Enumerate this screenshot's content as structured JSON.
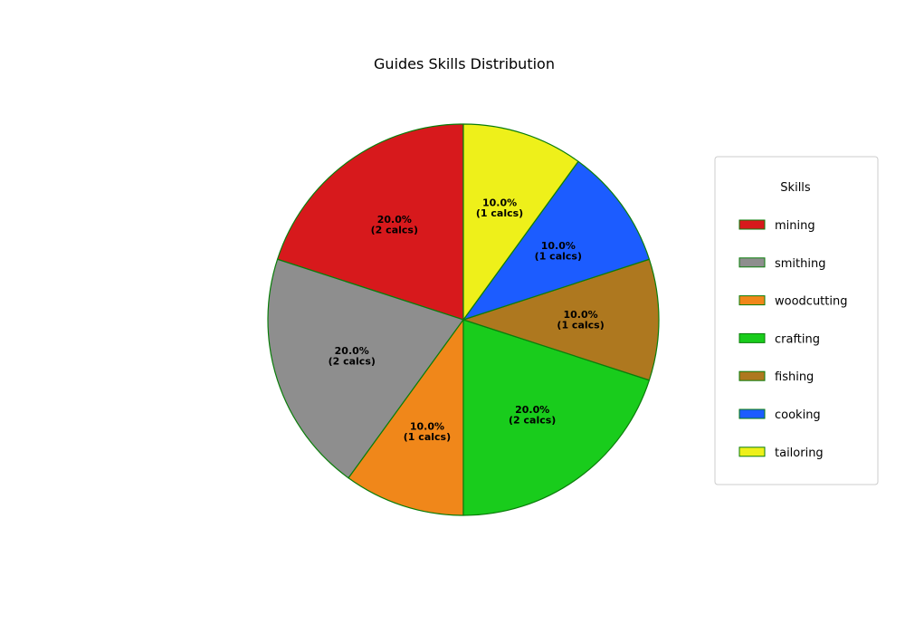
{
  "chart_data": {
    "type": "pie",
    "title": "Guides Skills Distribution",
    "legend_title": "Skills",
    "legend_position": "right",
    "slice_edge_color": "#0a7d0a",
    "start_angle_deg": 90,
    "direction": "counterclockwise",
    "slices": [
      {
        "label": "mining",
        "value": 2,
        "percent_label": "20.0%",
        "count_label": "(2 calcs)",
        "color": "#d7191c"
      },
      {
        "label": "smithing",
        "value": 2,
        "percent_label": "20.0%",
        "count_label": "(2 calcs)",
        "color": "#8e8e8e"
      },
      {
        "label": "woodcutting",
        "value": 1,
        "percent_label": "10.0%",
        "count_label": "(1 calcs)",
        "color": "#f0871a"
      },
      {
        "label": "crafting",
        "value": 2,
        "percent_label": "20.0%",
        "count_label": "(2 calcs)",
        "color": "#19cc1c"
      },
      {
        "label": "fishing",
        "value": 1,
        "percent_label": "10.0%",
        "count_label": "(1 calcs)",
        "color": "#ae781f"
      },
      {
        "label": "cooking",
        "value": 1,
        "percent_label": "10.0%",
        "count_label": "(1 calcs)",
        "color": "#1c5cff"
      },
      {
        "label": "tailoring",
        "value": 1,
        "percent_label": "10.0%",
        "count_label": "(1 calcs)",
        "color": "#eef01a"
      }
    ]
  }
}
